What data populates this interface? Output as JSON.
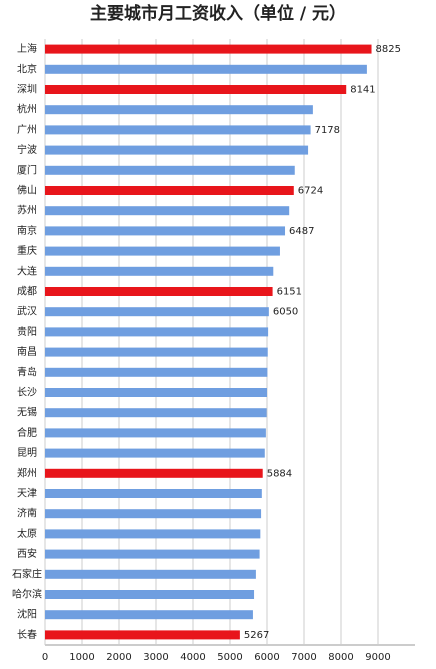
{
  "chart_data": {
    "type": "hbar",
    "title": "主要城市月工资收入（单位 / 元）",
    "categories": [
      "上海",
      "北京",
      "深圳",
      "杭州",
      "广州",
      "宁波",
      "厦门",
      "佛山",
      "苏州",
      "南京",
      "重庆",
      "大连",
      "成都",
      "武汉",
      "贵阳",
      "南昌",
      "青岛",
      "长沙",
      "无锡",
      "合肥",
      "昆明",
      "郑州",
      "天津",
      "济南",
      "太原",
      "西安",
      "石家庄",
      "哈尔滨",
      "沈阳",
      "长春"
    ],
    "values": [
      8825,
      8700,
      8141,
      7240,
      7178,
      7110,
      6750,
      6724,
      6600,
      6487,
      6350,
      6170,
      6151,
      6050,
      6030,
      6020,
      6010,
      6000,
      5990,
      5970,
      5940,
      5884,
      5860,
      5840,
      5820,
      5800,
      5700,
      5650,
      5620,
      5267
    ],
    "value_labels": [
      "8825",
      null,
      "8141",
      null,
      "7178",
      null,
      null,
      "6724",
      null,
      "6487",
      null,
      null,
      "6151",
      "6050",
      null,
      null,
      null,
      null,
      null,
      null,
      null,
      "5884",
      null,
      null,
      null,
      null,
      null,
      null,
      null,
      "5267"
    ],
    "colors": [
      "#e8151b",
      "#6f9ee0",
      "#e8151b",
      "#6f9ee0",
      "#6f9ee0",
      "#6f9ee0",
      "#6f9ee0",
      "#e8151b",
      "#6f9ee0",
      "#6f9ee0",
      "#6f9ee0",
      "#6f9ee0",
      "#e8151b",
      "#6f9ee0",
      "#6f9ee0",
      "#6f9ee0",
      "#6f9ee0",
      "#6f9ee0",
      "#6f9ee0",
      "#6f9ee0",
      "#6f9ee0",
      "#e8151b",
      "#6f9ee0",
      "#6f9ee0",
      "#6f9ee0",
      "#6f9ee0",
      "#6f9ee0",
      "#6f9ee0",
      "#6f9ee0",
      "#e8151b"
    ],
    "xlim": [
      0,
      10000
    ],
    "xticks": [
      0,
      1000,
      2000,
      3000,
      4000,
      5000,
      6000,
      7000,
      8000,
      9000
    ],
    "grid": true
  }
}
